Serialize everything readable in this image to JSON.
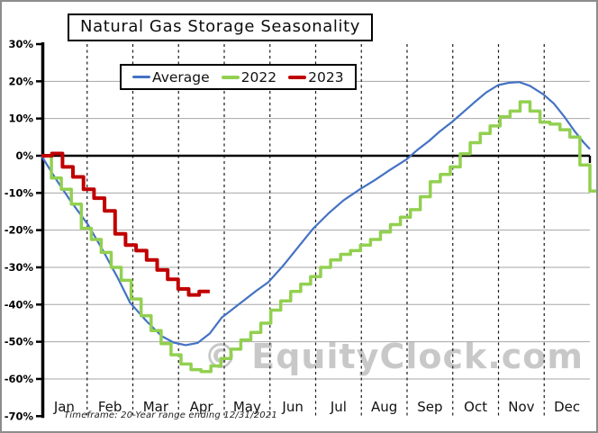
{
  "window": {
    "background_color": "#ffffff",
    "border_color": "#8c8c8c"
  },
  "title": "Natural Gas Storage Seasonality",
  "watermark": "© EquityClock.com",
  "footnote": "Timeframe: 20-Year range ending 12/31/2021",
  "colors": {
    "average_line": "#4472C4",
    "year2022_line": "#92D050",
    "year2023_line": "#C00000",
    "gridline": "#A6A6A6",
    "zero_line": "#000000",
    "month_divider": "#1a1a1a",
    "watermark": "#c8c8c8",
    "axis": "#000000"
  },
  "chart_data": {
    "type": "line",
    "title": "Natural Gas Storage Seasonality",
    "xlabel": "",
    "ylabel": "",
    "x_axis": {
      "tick_labels": [
        "Jan",
        "Feb",
        "Mar",
        "Apr",
        "May",
        "Jun",
        "Jul",
        "Aug",
        "Sep",
        "Oct",
        "Nov",
        "Dec"
      ],
      "span_days": 365,
      "month_gridlines": "dashed-vertical"
    },
    "y_axis": {
      "min": -70,
      "max": 30,
      "tick_step": 10,
      "tick_labels": [
        "30%",
        "20%",
        "10%",
        "0%",
        "-10%",
        "-20%",
        "-30%",
        "-40%",
        "-50%",
        "-60%",
        "-70%"
      ],
      "unit": "%",
      "zero_line_emphasized": true
    },
    "grid": {
      "horizontal": true,
      "vertical_dashed_months": true
    },
    "legend": {
      "position": "top-center",
      "entries": [
        {
          "label": "Average",
          "color": "#4472C4",
          "swatch_height": 2.5
        },
        {
          "label": "2022",
          "color": "#92D050",
          "swatch_height": 4
        },
        {
          "label": "2023",
          "color": "#C00000",
          "swatch_height": 4
        }
      ]
    },
    "series": [
      {
        "name": "Average",
        "style": "smooth",
        "color": "#4472C4",
        "stroke_width": 2.2,
        "points_day_value": [
          [
            0,
            0
          ],
          [
            10,
            -6.5
          ],
          [
            20,
            -12.5
          ],
          [
            31,
            -18.5
          ],
          [
            41,
            -25.5
          ],
          [
            51,
            -33
          ],
          [
            59,
            -39.5
          ],
          [
            70,
            -44.5
          ],
          [
            80,
            -48.5
          ],
          [
            88,
            -50.2
          ],
          [
            96,
            -50.9
          ],
          [
            104,
            -50.3
          ],
          [
            112,
            -47.8
          ],
          [
            120,
            -43.5
          ],
          [
            128,
            -41
          ],
          [
            135,
            -38.8
          ],
          [
            143,
            -36.3
          ],
          [
            151,
            -34
          ],
          [
            161,
            -29.5
          ],
          [
            171,
            -24.5
          ],
          [
            181,
            -19.5
          ],
          [
            191,
            -15.5
          ],
          [
            201,
            -12
          ],
          [
            212,
            -9
          ],
          [
            222,
            -6.5
          ],
          [
            232,
            -3.8
          ],
          [
            243,
            -1
          ],
          [
            250,
            1.5
          ],
          [
            258,
            4
          ],
          [
            265,
            6.5
          ],
          [
            273,
            9
          ],
          [
            281,
            11.8
          ],
          [
            288,
            14.3
          ],
          [
            296,
            17
          ],
          [
            304,
            19
          ],
          [
            311,
            19.6
          ],
          [
            318,
            19.8
          ],
          [
            325,
            18.8
          ],
          [
            334,
            16.5
          ],
          [
            341,
            14
          ],
          [
            348,
            10.5
          ],
          [
            355,
            6.5
          ],
          [
            361,
            3.5
          ],
          [
            365,
            1.8
          ]
        ]
      },
      {
        "name": "2022",
        "style": "step",
        "color": "#92D050",
        "stroke_width": 3.5,
        "start_day": 0,
        "interval_days": 6.636,
        "values": [
          0,
          -6,
          -9,
          -13,
          -19.5,
          -22.5,
          -26,
          -30,
          -33.5,
          -38.5,
          -43,
          -47,
          -50.5,
          -53.5,
          -56,
          -57.5,
          -58,
          -56.5,
          -54.5,
          -52,
          -49.5,
          -47.5,
          -45,
          -41.5,
          -39,
          -36.5,
          -34.5,
          -32.5,
          -30,
          -28,
          -26.5,
          -25.5,
          -24,
          -22.5,
          -20.5,
          -18.5,
          -16.5,
          -14.5,
          -11,
          -7,
          -5,
          -3,
          0.5,
          3.5,
          6,
          8,
          10.5,
          12,
          14.5,
          12,
          9,
          8.5,
          7,
          5,
          -2.5,
          -9.5
        ]
      },
      {
        "name": "2023",
        "style": "step",
        "color": "#C00000",
        "stroke_width": 4,
        "start_day": 0,
        "interval_days": 7,
        "values": [
          0,
          0.6,
          -3,
          -5.7,
          -9,
          -11.4,
          -14.8,
          -21,
          -24,
          -25.5,
          -28,
          -30.7,
          -33.2,
          -35.8,
          -37.4,
          -36.5
        ]
      }
    ]
  }
}
